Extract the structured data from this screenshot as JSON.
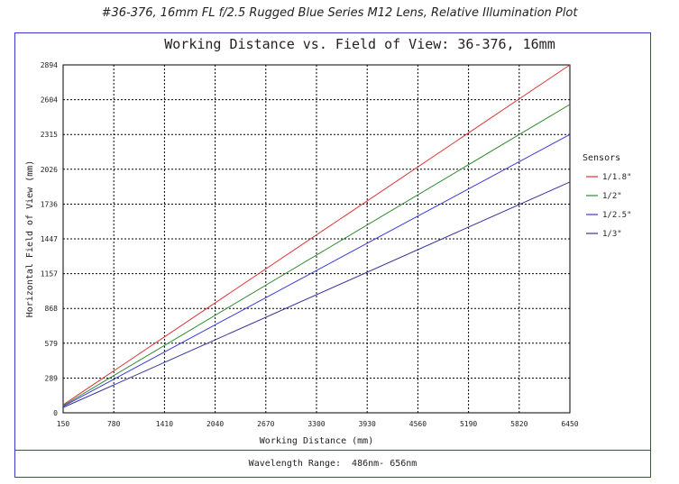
{
  "page": {
    "title": "#36-376, 16mm FL f/2.5 Rugged Blue Series M12 Lens, Relative Illumination Plot"
  },
  "footer": {
    "wavelength_label": "Wavelength Range:  486nm- 656nm"
  },
  "chart_data": {
    "type": "line",
    "title": "Working Distance vs. Field of View: 36-376, 16mm",
    "xlabel": "Working Distance (mm)",
    "ylabel": "Horizontal Field of View (mm)",
    "xlim": [
      150,
      6450
    ],
    "ylim": [
      0,
      2894
    ],
    "x_ticks": [
      150,
      780,
      1410,
      2040,
      2670,
      3300,
      3930,
      4560,
      5190,
      5820,
      6450
    ],
    "y_ticks": [
      0,
      289,
      579,
      868,
      1157,
      1447,
      1736,
      2026,
      2315,
      2604,
      2894
    ],
    "grid": true,
    "legend": {
      "title": "Sensors",
      "placement": "right"
    },
    "series": [
      {
        "name": "1/1.8\"",
        "color": "#dd3333",
        "x": [
          150,
          6450
        ],
        "y": [
          66,
          2894
        ]
      },
      {
        "name": "1/2\"",
        "color": "#2e8b2e",
        "x": [
          150,
          6450
        ],
        "y": [
          59,
          2565
        ]
      },
      {
        "name": "1/2.5\"",
        "color": "#3a3ad6",
        "x": [
          150,
          6450
        ],
        "y": [
          53,
          2315
        ]
      },
      {
        "name": "1/3\"",
        "color": "#343496",
        "x": [
          150,
          6450
        ],
        "y": [
          44,
          1920
        ]
      }
    ]
  }
}
